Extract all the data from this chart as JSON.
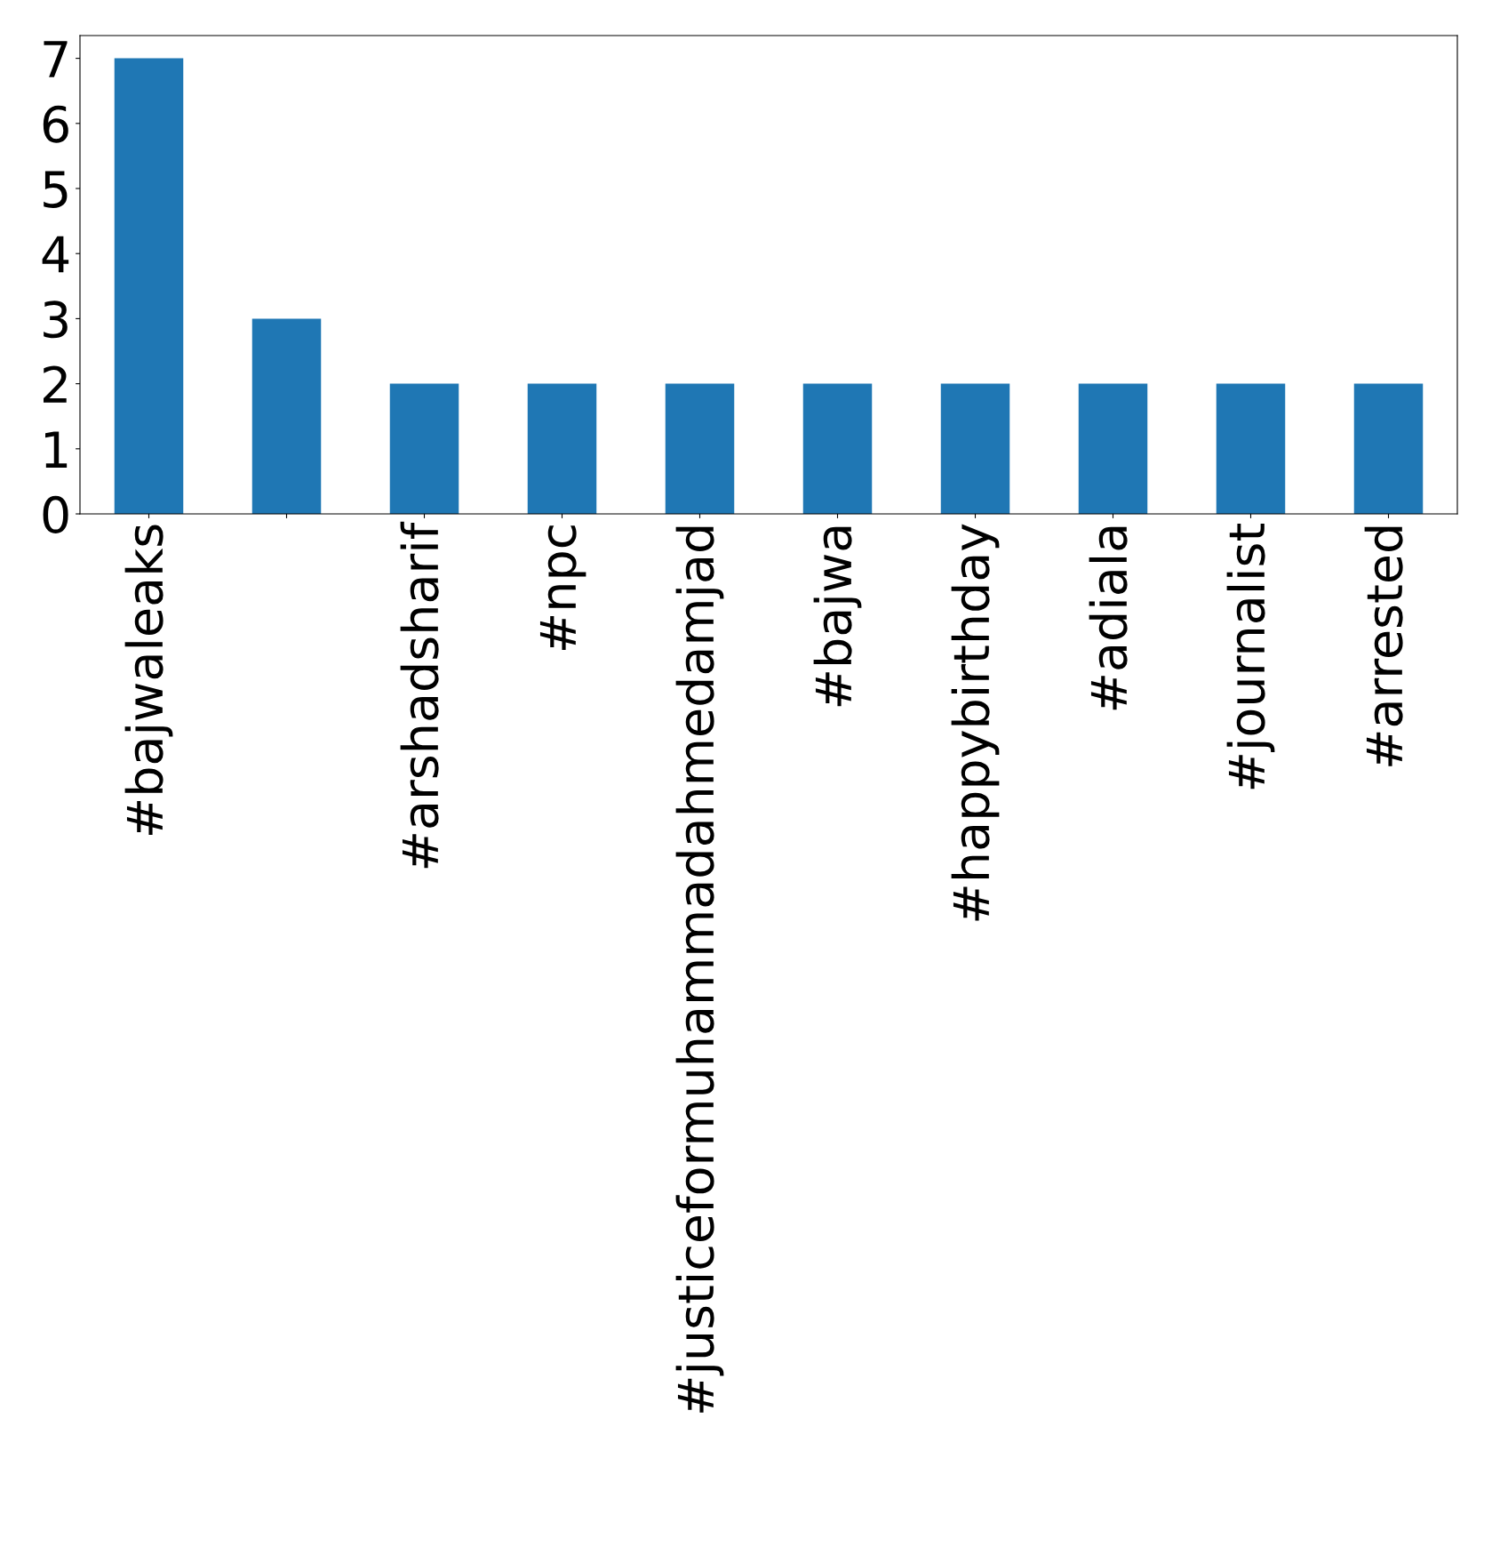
{
  "chart_data": {
    "type": "bar",
    "categories": [
      "#bajwaleaks",
      null,
      "#arshadsharif",
      "#npc",
      "#justiceformuhammadahmedamjad",
      "#bajwa",
      "#happybirthday",
      "#adiala",
      "#journalist",
      "#arrested"
    ],
    "values": [
      7,
      3,
      2,
      2,
      2,
      2,
      2,
      2,
      2,
      2
    ],
    "color": "#1f77b4",
    "ylim": [
      0,
      7.35
    ],
    "yticks": [
      0,
      1,
      2,
      3,
      4,
      5,
      6,
      7
    ],
    "grid": false,
    "legend": false
  }
}
